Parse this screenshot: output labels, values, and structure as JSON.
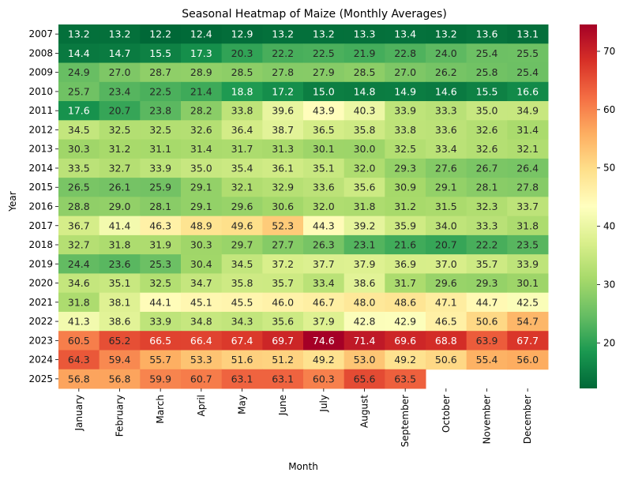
{
  "chart_data": {
    "type": "heatmap",
    "title": "Seasonal Heatmap of Maize (Monthly Averages)",
    "xlabel": "Month",
    "ylabel": "Year",
    "colormap": "RdYlGn_r",
    "color_low": "#006837",
    "color_mid": "#ffffbf",
    "color_high": "#a50026",
    "vmin": 12.2,
    "vmax": 74.6,
    "colorbar_ticks": [
      20,
      30,
      40,
      50,
      60,
      70
    ],
    "months": [
      "January",
      "February",
      "March",
      "April",
      "May",
      "June",
      "July",
      "August",
      "September",
      "October",
      "November",
      "December"
    ],
    "years": [
      "2007",
      "2008",
      "2009",
      "2010",
      "2011",
      "2012",
      "2013",
      "2014",
      "2015",
      "2016",
      "2017",
      "2018",
      "2019",
      "2020",
      "2021",
      "2022",
      "2023",
      "2024",
      "2025"
    ],
    "values": [
      [
        13.2,
        13.2,
        12.2,
        12.4,
        12.9,
        13.2,
        13.2,
        13.3,
        13.4,
        13.2,
        13.6,
        13.1
      ],
      [
        14.4,
        14.7,
        15.5,
        17.3,
        20.3,
        22.2,
        22.5,
        21.9,
        22.8,
        24.0,
        25.4,
        25.5
      ],
      [
        24.9,
        27.0,
        28.7,
        28.9,
        28.5,
        27.8,
        27.9,
        28.5,
        27.0,
        26.2,
        25.8,
        25.4
      ],
      [
        25.7,
        23.4,
        22.5,
        21.4,
        18.8,
        17.2,
        15.0,
        14.8,
        14.9,
        14.6,
        15.5,
        16.6
      ],
      [
        17.6,
        20.7,
        23.8,
        28.2,
        33.8,
        39.6,
        43.9,
        40.3,
        33.9,
        33.3,
        35.0,
        34.9
      ],
      [
        34.5,
        32.5,
        32.5,
        32.6,
        36.4,
        38.7,
        36.5,
        35.8,
        33.8,
        33.6,
        32.6,
        31.4
      ],
      [
        30.3,
        31.2,
        31.1,
        31.4,
        31.7,
        31.3,
        30.1,
        30.0,
        32.5,
        33.4,
        32.6,
        32.1
      ],
      [
        33.5,
        32.7,
        33.9,
        35.0,
        35.4,
        36.1,
        35.1,
        32.0,
        29.3,
        27.6,
        26.7,
        26.4
      ],
      [
        26.5,
        26.1,
        25.9,
        29.1,
        32.1,
        32.9,
        33.6,
        35.6,
        30.9,
        29.1,
        28.1,
        27.8
      ],
      [
        28.8,
        29.0,
        28.1,
        29.1,
        29.6,
        30.6,
        32.0,
        31.8,
        31.2,
        31.5,
        32.3,
        33.7
      ],
      [
        36.7,
        41.4,
        46.3,
        48.9,
        49.6,
        52.3,
        44.3,
        39.2,
        35.9,
        34.0,
        33.3,
        31.8
      ],
      [
        32.7,
        31.8,
        31.9,
        30.3,
        29.7,
        27.7,
        26.3,
        23.1,
        21.6,
        20.7,
        22.2,
        23.5
      ],
      [
        24.4,
        23.6,
        25.3,
        30.4,
        34.5,
        37.2,
        37.7,
        37.9,
        36.9,
        37.0,
        35.7,
        33.9
      ],
      [
        34.6,
        35.1,
        32.5,
        34.7,
        35.8,
        35.7,
        33.4,
        38.6,
        31.7,
        29.6,
        29.3,
        30.1
      ],
      [
        31.8,
        38.1,
        44.1,
        45.1,
        45.5,
        46.0,
        46.7,
        48.0,
        48.6,
        47.1,
        44.7,
        42.5
      ],
      [
        41.3,
        38.6,
        33.9,
        34.8,
        34.3,
        35.6,
        37.9,
        42.8,
        42.9,
        46.5,
        50.6,
        54.7
      ],
      [
        60.5,
        65.2,
        66.5,
        66.4,
        67.4,
        69.7,
        74.6,
        71.4,
        69.6,
        68.8,
        63.9,
        67.7
      ],
      [
        64.3,
        59.4,
        55.7,
        53.3,
        51.6,
        51.2,
        49.2,
        53.0,
        49.2,
        50.6,
        55.4,
        56.0
      ],
      [
        56.8,
        56.8,
        59.9,
        60.7,
        63.1,
        63.1,
        60.3,
        65.6,
        63.5,
        null,
        null,
        null
      ]
    ]
  }
}
